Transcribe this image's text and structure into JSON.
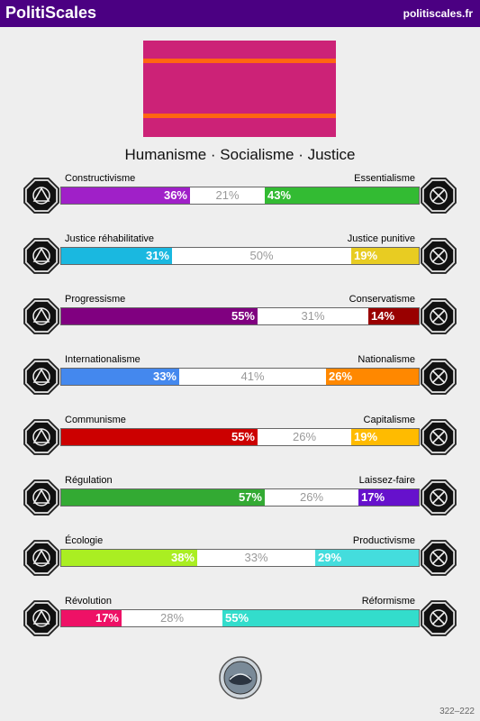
{
  "header": {
    "brand": "PolitiScales",
    "site": "politiscales.fr"
  },
  "flag": {
    "background": "#cc2277",
    "stripe": "#ff6611"
  },
  "slogan": "Humanisme · Socialisme · Justice",
  "axes": [
    {
      "left_label": "Constructivisme",
      "right_label": "Essentialisme",
      "left_value": "36%",
      "mid_value": "21%",
      "right_value": "43%",
      "left_pct": 36,
      "mid_pct": 21,
      "right_pct": 43,
      "left_color": "#a020c8",
      "right_color": "#33bb33",
      "left_icon": "constructivism-icon",
      "right_icon": "essentialism-icon"
    },
    {
      "left_label": "Justice réhabilitative",
      "right_label": "Justice punitive",
      "left_value": "31%",
      "mid_value": "50%",
      "right_value": "19%",
      "left_pct": 31,
      "mid_pct": 50,
      "right_pct": 19,
      "left_color": "#1ab8e0",
      "right_color": "#e8cc22",
      "left_icon": "handshake-icon",
      "right_icon": "prison-bars-icon"
    },
    {
      "left_label": "Progressisme",
      "right_label": "Conservatisme",
      "left_value": "55%",
      "mid_value": "31%",
      "right_value": "14%",
      "left_pct": 55,
      "mid_pct": 31,
      "right_pct": 14,
      "left_color": "#800080",
      "right_color": "#990000",
      "left_icon": "progress-icon",
      "right_icon": "conservatism-icon"
    },
    {
      "left_label": "Internationalisme",
      "right_label": "Nationalisme",
      "left_value": "33%",
      "mid_value": "41%",
      "right_value": "26%",
      "left_pct": 33,
      "mid_pct": 41,
      "right_pct": 26,
      "left_color": "#4488ee",
      "right_color": "#ff8800",
      "left_icon": "globe-icon",
      "right_icon": "flag-icon"
    },
    {
      "left_label": "Communisme",
      "right_label": "Capitalisme",
      "left_value": "55%",
      "mid_value": "26%",
      "right_value": "19%",
      "left_pct": 55,
      "mid_pct": 26,
      "right_pct": 19,
      "left_color": "#cc0000",
      "right_color": "#ffbb00",
      "left_icon": "hammer-sickle-icon",
      "right_icon": "money-bag-icon"
    },
    {
      "left_label": "Régulation",
      "right_label": "Laissez-faire",
      "left_value": "57%",
      "mid_value": "26%",
      "right_value": "17%",
      "left_pct": 57,
      "mid_pct": 26,
      "right_pct": 17,
      "left_color": "#33aa33",
      "right_color": "#6611cc",
      "left_icon": "regulation-icon",
      "right_icon": "butterfly-icon"
    },
    {
      "left_label": "Écologie",
      "right_label": "Productivisme",
      "left_value": "38%",
      "mid_value": "33%",
      "right_value": "29%",
      "left_pct": 38,
      "mid_pct": 33,
      "right_pct": 29,
      "left_color": "#aaee22",
      "right_color": "#44dddd",
      "left_icon": "ecology-icon",
      "right_icon": "factory-icon"
    },
    {
      "left_label": "Révolution",
      "right_label": "Réformisme",
      "left_value": "17%",
      "mid_value": "28%",
      "right_value": "55%",
      "left_pct": 17,
      "mid_pct": 28,
      "right_pct": 55,
      "left_color": "#ee1166",
      "right_color": "#33ddcc",
      "left_icon": "revolution-icon",
      "right_icon": "reformism-icon"
    }
  ],
  "footer": {
    "code": "322–222"
  }
}
